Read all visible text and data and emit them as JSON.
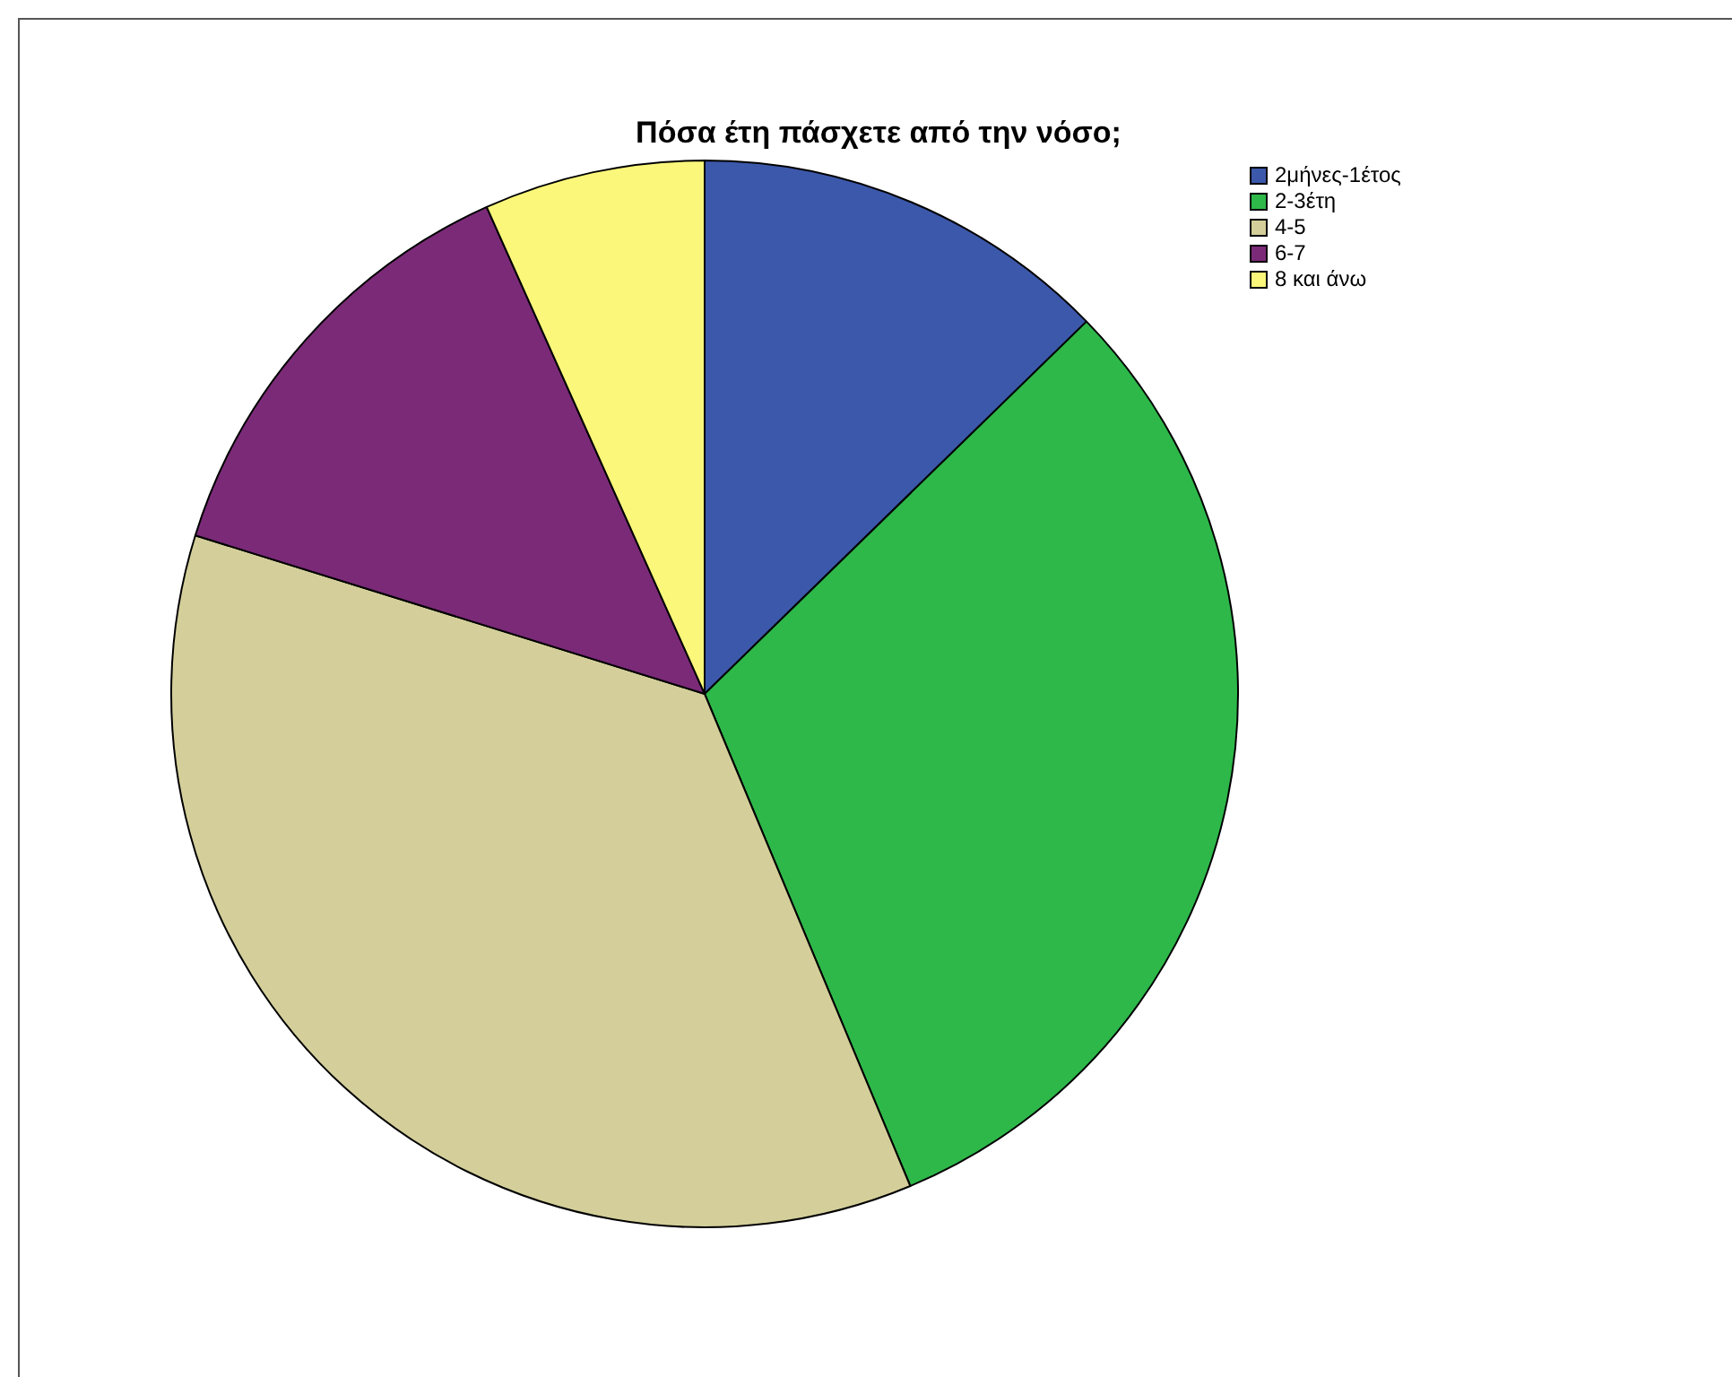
{
  "chart_data": {
    "type": "pie",
    "title": "Πόσα έτη πάσχετε από την νόσο;",
    "categories": [
      "2μήνες-1έτος",
      "2-3έτη",
      "4-5",
      "6-7",
      "8 και άνω"
    ],
    "values": [
      12.7,
      31.0,
      36.1,
      13.5,
      6.7
    ],
    "colors": [
      "#3c58aa",
      "#2eb84a",
      "#d4cf9a",
      "#7b2a78",
      "#fbf77a"
    ],
    "legend": "top right"
  }
}
